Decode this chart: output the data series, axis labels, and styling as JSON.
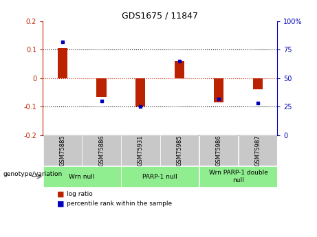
{
  "title": "GDS1675 / 11847",
  "samples": [
    "GSM75885",
    "GSM75886",
    "GSM75931",
    "GSM75985",
    "GSM75986",
    "GSM75987"
  ],
  "log_ratio": [
    0.105,
    -0.065,
    -0.1,
    0.06,
    -0.085,
    -0.04
  ],
  "percentile_rank": [
    82,
    30,
    25,
    65,
    32,
    28
  ],
  "groups": [
    {
      "label": "Wrn null",
      "start": 0,
      "end": 2,
      "color": "#90EE90"
    },
    {
      "label": "PARP-1 null",
      "start": 2,
      "end": 4,
      "color": "#90EE90"
    },
    {
      "label": "Wrn PARP-1 double\nnull",
      "start": 4,
      "end": 6,
      "color": "#90EE90"
    }
  ],
  "ylim_left": [
    -0.2,
    0.2
  ],
  "ylim_right": [
    0,
    100
  ],
  "yticks_left": [
    -0.2,
    -0.1,
    0.0,
    0.1,
    0.2
  ],
  "yticks_right": [
    0,
    25,
    50,
    75,
    100
  ],
  "ytick_labels_left": [
    "-0.2",
    "-0.1",
    "0",
    "0.1",
    "0.2"
  ],
  "ytick_labels_right": [
    "0",
    "25",
    "50",
    "75",
    "100%"
  ],
  "red_color": "#BB2200",
  "blue_color": "#0000BB",
  "bar_width": 0.25,
  "legend_items": [
    "log ratio",
    "percentile rank within the sample"
  ],
  "genotype_label": "genotype/variation",
  "gray_color": "#C8C8C8",
  "green_color": "#90EE90"
}
